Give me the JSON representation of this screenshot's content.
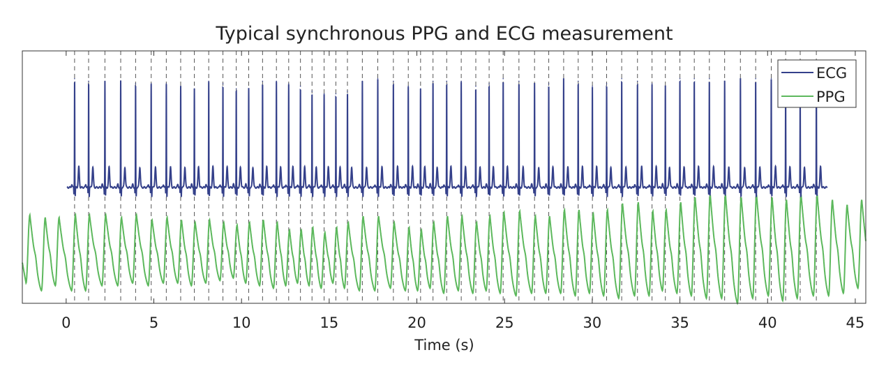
{
  "chart_data": {
    "type": "line",
    "title": "Typical synchronous PPG and ECG measurement",
    "xlabel": "Time (s)",
    "ylabel": "",
    "xlim": [
      -2.5,
      45.6
    ],
    "ylim": [
      0,
      1
    ],
    "x_ticks": [
      0,
      5,
      10,
      15,
      20,
      25,
      30,
      35,
      40,
      45
    ],
    "x_tick_labels": [
      "0",
      "5",
      "10",
      "15",
      "20",
      "25",
      "30",
      "35",
      "40",
      "45"
    ],
    "y_ticks": [],
    "grid": false,
    "legend": {
      "placement": "top-right",
      "entries": [
        "ECG",
        "PPG"
      ]
    },
    "beat_markers": {
      "style": "dashed vertical lines",
      "color": "#555555",
      "times": [
        0.48,
        1.28,
        2.21,
        3.11,
        3.96,
        4.85,
        5.71,
        6.53,
        7.31,
        8.13,
        8.94,
        9.7,
        10.41,
        11.2,
        11.99,
        12.69,
        13.36,
        14.02,
        14.71,
        15.38,
        16.04,
        16.89,
        17.77,
        18.66,
        19.51,
        20.21,
        20.92,
        21.7,
        22.53,
        23.36,
        24.12,
        24.92,
        25.82,
        26.71,
        27.52,
        28.37,
        29.2,
        30.01,
        30.82,
        31.68,
        32.58,
        33.41,
        34.17,
        35.0,
        35.82,
        36.68,
        37.55,
        38.45,
        39.32,
        40.21,
        41.03,
        41.86,
        42.78
      ]
    },
    "series": [
      {
        "name": "ECG",
        "color": "#34408a",
        "start": 0.05,
        "end": 43.4,
        "baseline": 0.459,
        "r_peak_values": [
          0.89,
          0.88,
          0.88,
          0.88,
          0.87,
          0.87,
          0.87,
          0.86,
          0.85,
          0.88,
          0.87,
          0.85,
          0.85,
          0.88,
          0.88,
          0.87,
          0.86,
          0.84,
          0.83,
          0.83,
          0.84,
          0.88,
          0.89,
          0.88,
          0.86,
          0.85,
          0.88,
          0.88,
          0.88,
          0.86,
          0.87,
          0.89,
          0.88,
          0.87,
          0.87,
          0.89,
          0.88,
          0.86,
          0.87,
          0.89,
          0.88,
          0.87,
          0.86,
          0.89,
          0.89,
          0.89,
          0.88,
          0.89,
          0.89,
          0.89,
          0.84,
          0.84,
          0.88
        ],
        "t_wave_value": 0.54
      },
      {
        "name": "PPG",
        "color": "#5cb85c",
        "peaks_before_ecg": [
          -2.07,
          -1.19,
          -0.4
        ],
        "peaks_after_ecg": [
          43.7,
          44.54,
          45.37
        ],
        "peak_values": [
          0.35,
          0.34,
          0.34,
          0.35,
          0.35,
          0.35,
          0.34,
          0.35,
          0.33,
          0.34,
          0.33,
          0.32,
          0.33,
          0.32,
          0.31,
          0.32,
          0.33,
          0.32,
          0.29,
          0.29,
          0.3,
          0.28,
          0.3,
          0.32,
          0.345,
          0.345,
          0.32,
          0.3,
          0.29,
          0.32,
          0.345,
          0.345,
          0.32,
          0.345,
          0.36,
          0.365,
          0.345,
          0.345,
          0.37,
          0.37,
          0.355,
          0.37,
          0.395,
          0.4,
          0.365,
          0.37,
          0.4,
          0.42,
          0.43,
          0.43,
          0.42,
          0.43,
          0.42,
          0.41,
          0.43,
          0.43,
          0.41,
          0.39,
          0.41
        ],
        "trough_values": [
          0.08,
          0.05,
          0.07,
          0.05,
          0.05,
          0.07,
          0.07,
          0.08,
          0.07,
          0.08,
          0.08,
          0.07,
          0.08,
          0.09,
          0.1,
          0.08,
          0.07,
          0.06,
          0.07,
          0.08,
          0.07,
          0.06,
          0.08,
          0.06,
          0.05,
          0.05,
          0.06,
          0.05,
          0.05,
          0.06,
          0.04,
          0.05,
          0.04,
          0.05,
          0.04,
          0.03,
          0.04,
          0.04,
          0.04,
          0.03,
          0.04,
          0.03,
          0.02,
          0.03,
          0.03,
          0.05,
          0.04,
          0.03,
          0.02,
          0.02,
          0.0,
          0.02,
          0.03,
          0.01,
          0.02,
          0.03,
          0.03,
          0.04,
          0.06
        ]
      }
    ]
  }
}
